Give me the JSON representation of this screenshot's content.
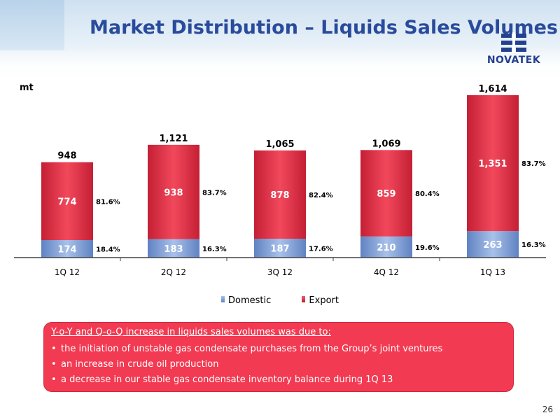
{
  "header": {
    "title": "Market Distribution – Liquids Sales Volumes",
    "logo_text": "NOVATEK"
  },
  "colors": {
    "domestic": "#7f9fd6",
    "export": "#e33348",
    "note_bg": "#f23a52",
    "title": "#2a4b9b"
  },
  "chart_data": {
    "type": "bar",
    "stacked": true,
    "unit": "mt",
    "title": "",
    "xlabel": "",
    "ylabel": "mt",
    "categories": [
      "1Q 12",
      "2Q 12",
      "3Q 12",
      "4Q 12",
      "1Q 13"
    ],
    "series": [
      {
        "name": "Domestic",
        "values": [
          174,
          183,
          187,
          210,
          263
        ],
        "shares": [
          "18.4%",
          "16.3%",
          "17.6%",
          "19.6%",
          "16.3%"
        ]
      },
      {
        "name": "Export",
        "values": [
          774,
          938,
          878,
          859,
          1351
        ],
        "shares": [
          "81.6%",
          "83.7%",
          "82.4%",
          "80.4%",
          "83.7%"
        ]
      }
    ],
    "totals": [
      948,
      1121,
      1065,
      1069,
      1614
    ],
    "total_labels": [
      "948",
      "1,121",
      "1,065",
      "1,069",
      "1,614"
    ],
    "value_labels": {
      "domestic": [
        "174",
        "183",
        "187",
        "210",
        "263"
      ],
      "export": [
        "774",
        "938",
        "878",
        "859",
        "1,351"
      ]
    },
    "ylim": [
      0,
      1614
    ],
    "grid": false,
    "legend_position": "bottom"
  },
  "legend": {
    "items": [
      {
        "label": "Domestic",
        "color": "#7f9fd6"
      },
      {
        "label": "Export",
        "color": "#e33348"
      }
    ]
  },
  "note": {
    "heading": "Y-o-Y and Q-o-Q increase in liquids sales volumes was due to:",
    "bullets": [
      "the initiation of unstable gas condensate purchases from the Group’s joint ventures",
      "an increase in crude oil production",
      "a decrease in our stable gas condensate inventory balance during 1Q 13"
    ]
  },
  "page_number": "26"
}
